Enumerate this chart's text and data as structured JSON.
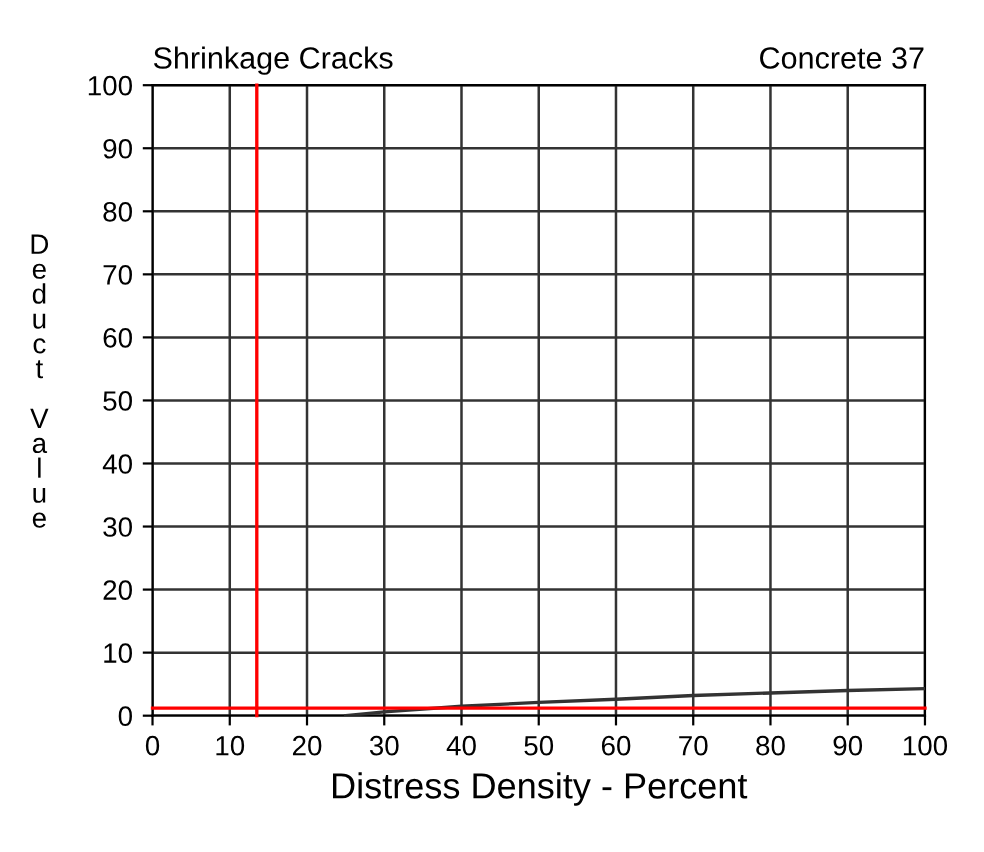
{
  "chart_data": {
    "type": "line",
    "title": "Shrinkage Cracks",
    "subtitle": "Concrete 37",
    "xlabel": "Distress Density - Percent",
    "ylabel": "Deduct Value",
    "series": [
      {
        "color": "#333333",
        "x": [
          25,
          30,
          40,
          50,
          60,
          70,
          80,
          90,
          100
        ],
        "values": [
          0,
          0.6,
          1.5,
          2.1,
          2.6,
          3.2,
          3.6,
          4.0,
          4.3
        ]
      }
    ],
    "xlim": [
      0,
      100
    ],
    "xticks": [
      0,
      10,
      20,
      30,
      40,
      50,
      60,
      70,
      80,
      90,
      100
    ],
    "ylim": [
      0,
      100
    ],
    "yticks": [
      0,
      10,
      20,
      30,
      40,
      50,
      60,
      70,
      80,
      90,
      100
    ],
    "grid": true,
    "marker": "none",
    "line_style": "solid",
    "ref_lines": [
      {
        "axis": "x",
        "value": 13.5,
        "color": "#ff0000"
      },
      {
        "axis": "y",
        "value": 1.2,
        "color": "#ff0000"
      }
    ]
  }
}
